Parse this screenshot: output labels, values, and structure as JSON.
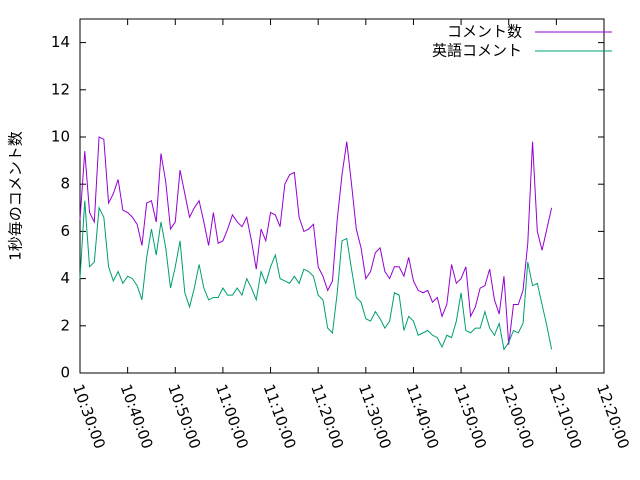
{
  "chart_data": {
    "type": "line",
    "ylabel": "1秒毎のコメント数",
    "x": [
      "10:30:00",
      "10:31:00",
      "10:32:00",
      "10:33:00",
      "10:34:00",
      "10:35:00",
      "10:36:00",
      "10:37:00",
      "10:38:00",
      "10:39:00",
      "10:40:00",
      "10:41:00",
      "10:42:00",
      "10:43:00",
      "10:44:00",
      "10:45:00",
      "10:46:00",
      "10:47:00",
      "10:48:00",
      "10:49:00",
      "10:50:00",
      "10:51:00",
      "10:52:00",
      "10:53:00",
      "10:54:00",
      "10:55:00",
      "10:56:00",
      "10:57:00",
      "10:58:00",
      "10:59:00",
      "11:00:00",
      "11:01:00",
      "11:02:00",
      "11:03:00",
      "11:04:00",
      "11:05:00",
      "11:06:00",
      "11:07:00",
      "11:08:00",
      "11:09:00",
      "11:10:00",
      "11:11:00",
      "11:12:00",
      "11:13:00",
      "11:14:00",
      "11:15:00",
      "11:16:00",
      "11:17:00",
      "11:18:00",
      "11:19:00",
      "11:20:00",
      "11:21:00",
      "11:22:00",
      "11:23:00",
      "11:24:00",
      "11:25:00",
      "11:26:00",
      "11:27:00",
      "11:28:00",
      "11:29:00",
      "11:30:00",
      "11:31:00",
      "11:32:00",
      "11:33:00",
      "11:34:00",
      "11:35:00",
      "11:36:00",
      "11:37:00",
      "11:38:00",
      "11:39:00",
      "11:40:00",
      "11:41:00",
      "11:42:00",
      "11:43:00",
      "11:44:00",
      "11:45:00",
      "11:46:00",
      "11:47:00",
      "11:48:00",
      "11:49:00",
      "11:50:00",
      "11:51:00",
      "11:52:00",
      "11:53:00",
      "11:54:00",
      "11:55:00",
      "11:56:00",
      "11:57:00",
      "11:58:00",
      "11:59:00",
      "12:00:00",
      "12:01:00",
      "12:02:00",
      "12:03:00",
      "12:04:00",
      "12:05:00",
      "12:06:00",
      "12:07:00",
      "12:08:00",
      "12:09:00"
    ],
    "series": [
      {
        "name": "コメント数",
        "color": "#9400d3",
        "values": [
          6.5,
          9.4,
          6.8,
          6.4,
          10.0,
          9.9,
          7.2,
          7.6,
          8.2,
          6.9,
          6.8,
          6.6,
          6.3,
          5.4,
          7.2,
          7.3,
          6.4,
          9.3,
          8.1,
          6.1,
          6.4,
          8.6,
          7.6,
          6.6,
          7.0,
          7.3,
          6.4,
          5.4,
          6.8,
          5.5,
          5.6,
          6.1,
          6.7,
          6.4,
          6.2,
          6.6,
          5.6,
          4.4,
          6.1,
          5.6,
          6.8,
          6.7,
          6.2,
          8.0,
          8.4,
          8.5,
          6.6,
          6.0,
          6.1,
          6.3,
          4.5,
          4.1,
          3.5,
          3.9,
          6.5,
          8.4,
          9.8,
          8.0,
          6.1,
          5.3,
          4.0,
          4.3,
          5.1,
          5.3,
          4.3,
          4.0,
          4.5,
          4.5,
          4.1,
          4.9,
          3.9,
          3.5,
          3.4,
          3.5,
          3.0,
          3.2,
          2.4,
          2.9,
          4.6,
          3.8,
          4.0,
          4.5,
          2.4,
          2.8,
          3.6,
          3.7,
          4.4,
          3.1,
          2.5,
          4.1,
          1.2,
          2.9,
          2.9,
          3.5,
          5.5,
          9.8,
          6.0,
          5.2,
          6.1,
          7.0
        ]
      },
      {
        "name": "英語コメント",
        "color": "#009e73",
        "values": [
          4.0,
          7.3,
          4.5,
          4.7,
          7.0,
          6.6,
          4.5,
          3.9,
          4.3,
          3.8,
          4.1,
          4.0,
          3.7,
          3.1,
          4.9,
          6.1,
          5.0,
          6.4,
          5.3,
          3.6,
          4.5,
          5.6,
          3.4,
          2.8,
          3.6,
          4.6,
          3.6,
          3.1,
          3.2,
          3.2,
          3.6,
          3.3,
          3.3,
          3.6,
          3.3,
          4.0,
          3.6,
          3.1,
          4.3,
          3.8,
          4.5,
          5.0,
          4.0,
          3.9,
          3.8,
          4.1,
          3.8,
          4.4,
          4.3,
          4.1,
          3.3,
          3.1,
          1.9,
          1.7,
          3.4,
          5.6,
          5.7,
          4.4,
          3.2,
          3.0,
          2.3,
          2.2,
          2.6,
          2.3,
          1.9,
          2.2,
          3.4,
          3.3,
          1.8,
          2.4,
          2.2,
          1.6,
          1.7,
          1.8,
          1.6,
          1.5,
          1.1,
          1.6,
          1.5,
          2.2,
          3.4,
          1.8,
          1.7,
          1.9,
          1.9,
          2.6,
          1.9,
          1.6,
          2.1,
          1.0,
          1.3,
          1.8,
          1.7,
          2.1,
          4.7,
          3.7,
          3.8,
          2.9,
          2.0,
          1.0
        ]
      }
    ],
    "xlim": [
      "10:30:00",
      "12:20:00"
    ],
    "xticks": [
      "10:30:00",
      "10:40:00",
      "10:50:00",
      "11:00:00",
      "11:10:00",
      "11:20:00",
      "11:30:00",
      "11:40:00",
      "11:50:00",
      "12:00:00",
      "12:10:00",
      "12:20:00"
    ],
    "ylim": [
      0,
      15
    ],
    "yticks": [
      0,
      2,
      4,
      6,
      8,
      10,
      12,
      14
    ],
    "legend": "top-right",
    "grid": false
  }
}
